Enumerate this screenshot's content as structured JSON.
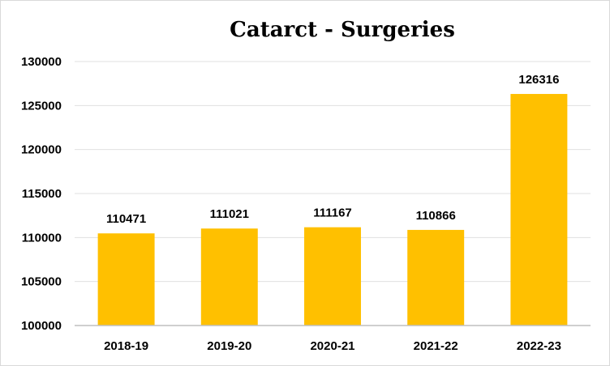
{
  "chart_data": {
    "type": "bar",
    "title": "Catarct - Surgeries",
    "xlabel": "",
    "ylabel": "",
    "categories": [
      "2018-19",
      "2019-20",
      "2020-21",
      "2021-22",
      "2022-23"
    ],
    "values": [
      110471,
      111021,
      111167,
      110866,
      126316
    ],
    "data_labels": [
      "110471",
      "111021",
      "111167",
      "110866",
      "126316"
    ],
    "ylim": [
      100000,
      130000
    ],
    "yticks": [
      100000,
      105000,
      110000,
      115000,
      120000,
      125000,
      130000
    ],
    "ytick_labels": [
      "100000",
      "105000",
      "110000",
      "115000",
      "120000",
      "125000",
      "130000"
    ],
    "grid": true,
    "legend": "none",
    "bar_color": "#FFC000"
  }
}
